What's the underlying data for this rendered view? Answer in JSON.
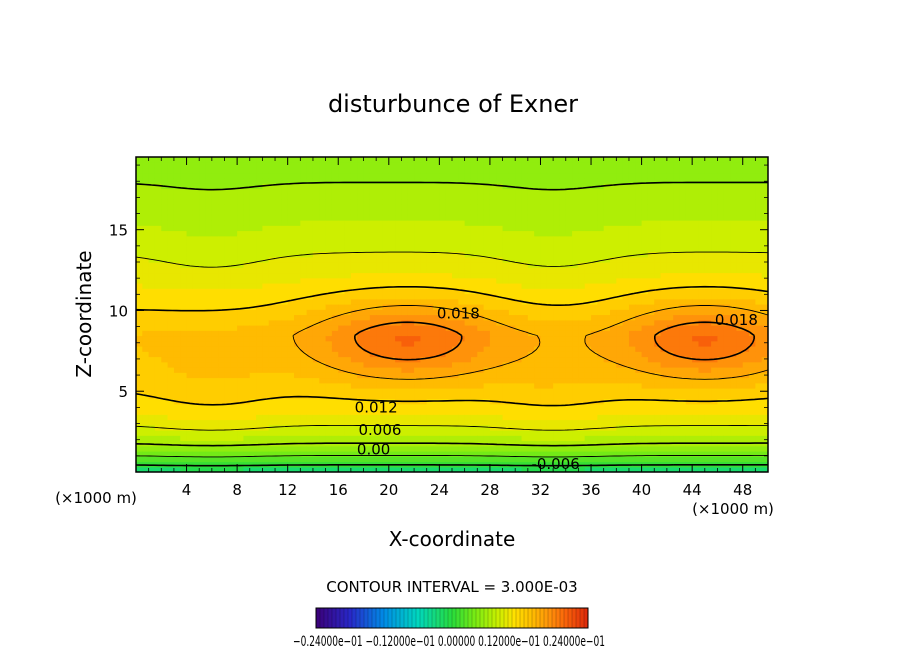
{
  "chart_data": {
    "type": "contour",
    "title": "disturbunce of Exner",
    "xlabel": "X-coordinate",
    "ylabel": "Z-coordinate",
    "x_unit": "(×1000 m)",
    "xlim": [
      0,
      50
    ],
    "ylim": [
      0,
      19.5
    ],
    "x_ticks": [
      "4",
      "8",
      "12",
      "16",
      "20",
      "24",
      "28",
      "32",
      "36",
      "40",
      "44",
      "48"
    ],
    "y_ticks": [
      "5",
      "10",
      "15"
    ],
    "contour_interval_text": "CONTOUR INTERVAL = 3.000E-03",
    "contour_labels": [
      {
        "text": "0.018",
        "x": 25.5,
        "z": 9.8
      },
      {
        "text": "0.018",
        "x": 47.5,
        "z": 9.4
      },
      {
        "text": "0.012",
        "x": 19,
        "z": 4.0
      },
      {
        "text": "0.006",
        "x": 19.3,
        "z": 2.6
      },
      {
        "text": "0.00",
        "x": 18.8,
        "z": 1.4
      },
      {
        "text": "-0.006",
        "x": 33.2,
        "z": 0.5
      }
    ],
    "maxima": [
      {
        "x": 21.5,
        "z": 8.2,
        "approx_value": 0.021
      },
      {
        "x": 45,
        "z": 8.2,
        "approx_value": 0.021
      }
    ],
    "colorbar": {
      "range": [
        -0.024,
        0.024
      ],
      "labels_text": "−0.24000e−01 −0.12000e−01 0.00000 0.12000e−01 0.24000e−01"
    },
    "colors": {
      "background": "#ffffff",
      "frame": "#000000"
    }
  }
}
